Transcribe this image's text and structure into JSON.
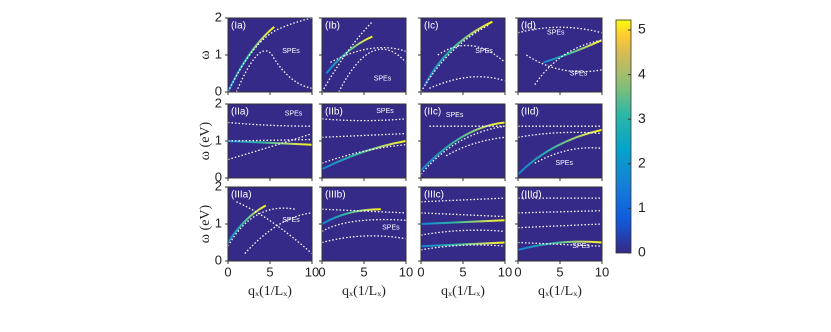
{
  "chart_data": {
    "type": "heatmap",
    "panels": [
      {
        "label": "(Ia)",
        "annotations": [
          "SPEs"
        ]
      },
      {
        "label": "(Ib)",
        "annotations": [
          "SPEs"
        ]
      },
      {
        "label": "(Ic)",
        "annotations": [
          "SPEs"
        ]
      },
      {
        "label": "(Id)",
        "annotations": [
          "SPEs",
          "SPEs"
        ]
      },
      {
        "label": "(IIa)",
        "annotations": [
          "SPEs"
        ]
      },
      {
        "label": "(IIb)",
        "annotations": [
          "SPEs"
        ]
      },
      {
        "label": "(IIc)",
        "annotations": [
          "SPEs"
        ]
      },
      {
        "label": "(IId)",
        "annotations": [
          "SPEs"
        ]
      },
      {
        "label": "(IIIa)",
        "annotations": [
          "SPEs"
        ]
      },
      {
        "label": "(IIIb)",
        "annotations": [
          "SPEs"
        ]
      },
      {
        "label": "(IIIc)",
        "annotations": []
      },
      {
        "label": "(IIId)",
        "annotations": [
          "SPEs"
        ]
      }
    ],
    "xlabel": "qₓ(1/Lₓ)",
    "ylabels": [
      "ω",
      "ω (eV)",
      "ω (eV)"
    ],
    "xlim": [
      0,
      10
    ],
    "xticks": [
      0,
      5,
      10
    ],
    "ylim": [
      0,
      2
    ],
    "yticks": [
      0,
      1,
      2
    ],
    "colorbar": {
      "lim": [
        0,
        5
      ],
      "ticks": [
        0,
        1,
        2,
        3,
        4,
        5
      ]
    }
  }
}
